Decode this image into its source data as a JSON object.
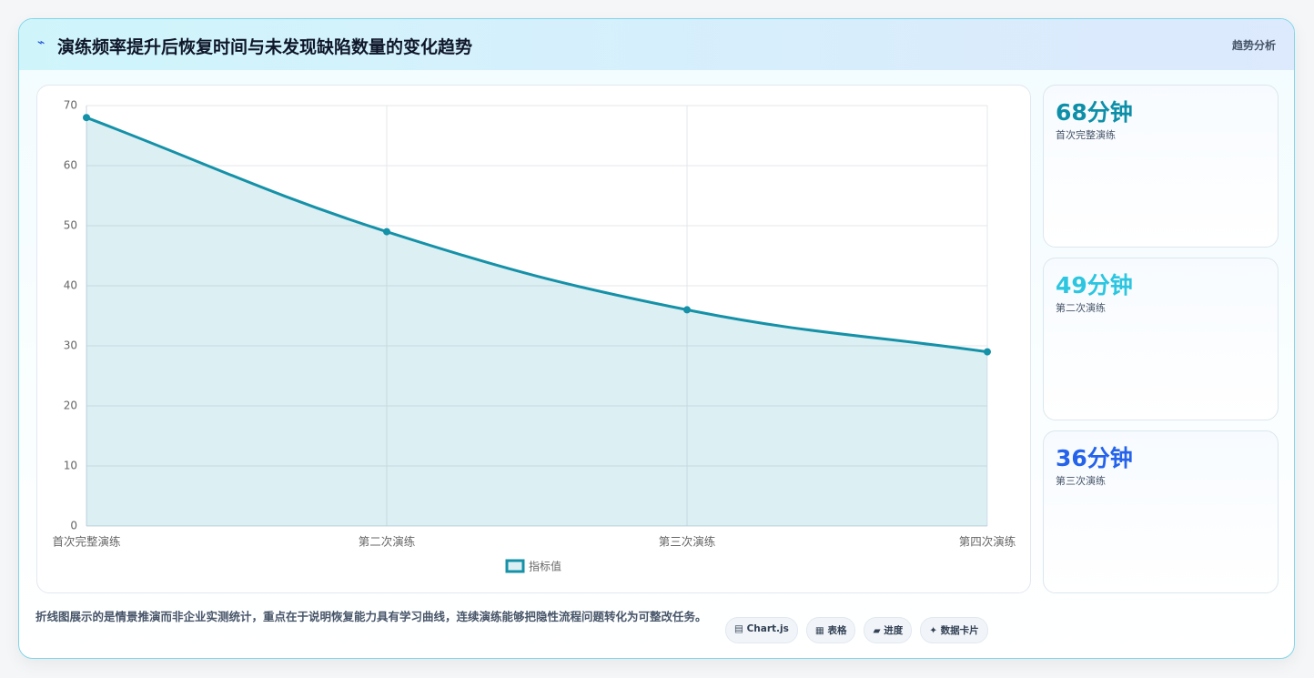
{
  "header": {
    "icon": "⌁",
    "title": "演练频率提升后恢复时间与未发现缺陷数量的变化趋势",
    "tag": "趋势分析"
  },
  "chart_data": {
    "type": "line",
    "categories": [
      "首次完整演练",
      "第二次演练",
      "第三次演练",
      "第四次演练"
    ],
    "series": [
      {
        "name": "指标值",
        "color": "#1591a8",
        "values": [
          68,
          49,
          36,
          29
        ]
      }
    ],
    "ylim": [
      0,
      70
    ],
    "yticks": [
      0,
      10,
      20,
      30,
      40,
      50,
      60,
      70
    ],
    "grid": true,
    "area": true
  },
  "cards": [
    {
      "value": "68分钟",
      "label": "首次完整演练",
      "color": "#0e8fa8"
    },
    {
      "value": "49分钟",
      "label": "第二次演练",
      "color": "#2cc6e0"
    },
    {
      "value": "36分钟",
      "label": "第三次演练",
      "color": "#2563eb"
    }
  ],
  "footer": {
    "note": "折线图展示的是情景推演而非企业实测统计，重点在于说明恢复能力具有学习曲线，连续演练能够把隐性流程问题转化为可整改任务。",
    "chips": [
      "▤ Chart.js",
      "▦ 表格",
      "▰ 进度",
      "✦ 数据卡片"
    ]
  }
}
